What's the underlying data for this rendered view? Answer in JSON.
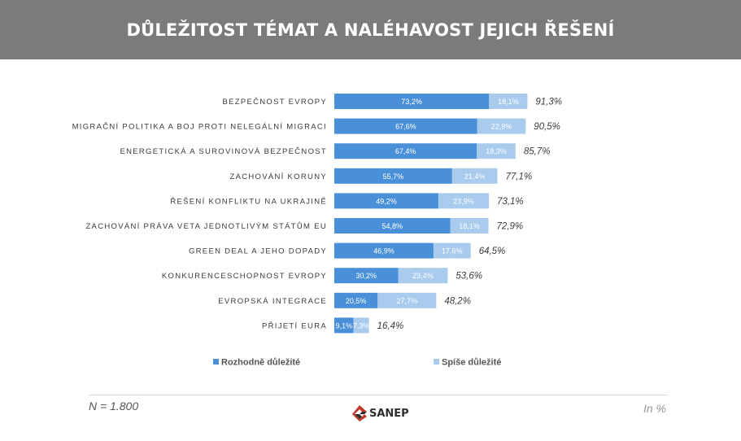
{
  "header": {
    "title": "DŮLEŽITOST TÉMAT A NALÉHAVOST JEJICH ŘEŠENÍ"
  },
  "footer": {
    "n_label": "N = 1.800",
    "unit_label": "In %",
    "logo_text": "SANEP"
  },
  "colors": {
    "header_bg": "#7b7b7b",
    "series_1": "#4a90d9",
    "series_2": "#a9cbee"
  },
  "chart_data": {
    "type": "bar",
    "orientation": "horizontal",
    "stacked": true,
    "categories": [
      "BEZPEČNOST EVROPY",
      "MIGRAČNÍ POLITIKA A BOJ PROTI NELEGÁLNÍ MIGRACI",
      "ENERGETICKÁ A SUROVINOVÁ BEZPEČNOST",
      "ZACHOVÁNÍ KORUNY",
      "ŘEŠENÍ KONFLIKTU NA UKRAJINĚ",
      "ZACHOVÁNÍ PRÁVA VETA JEDNOTLIVÝM STÁTŮM EU",
      "GREEN DEAL A JEHO DOPADY",
      "KONKURENCESCHOPNOST EVROPY",
      "EVROPSKÁ INTEGRACE",
      "PŘIJETÍ EURA"
    ],
    "series": [
      {
        "name": "Rozhodně důležité",
        "color": "#4a90d9",
        "values": [
          73.2,
          67.6,
          67.4,
          55.7,
          49.2,
          54.8,
          46.9,
          30.2,
          20.5,
          9.1
        ],
        "labels": [
          "73,2%",
          "67,6%",
          "67,4%",
          "55,7%",
          "49,2%",
          "54,8%",
          "46,9%",
          "30,2%",
          "20,5%",
          "9,1%"
        ]
      },
      {
        "name": "Spíše důležité",
        "color": "#a9cbee",
        "values": [
          18.1,
          22.9,
          18.3,
          21.4,
          23.9,
          18.1,
          17.6,
          23.4,
          27.7,
          7.3
        ],
        "labels": [
          "18,1%",
          "22,9%",
          "18,3%",
          "21,4%",
          "23,9%",
          "18,1%",
          "17,6%",
          "23,4%",
          "27,7%",
          "7,3%"
        ]
      }
    ],
    "totals": [
      91.3,
      90.5,
      85.7,
      77.1,
      73.1,
      72.9,
      64.5,
      53.6,
      48.2,
      16.4
    ],
    "total_labels": [
      "91,3%",
      "90,5%",
      "85,7%",
      "77,1%",
      "73,1%",
      "72,9%",
      "64,5%",
      "53,6%",
      "48,2%",
      "16,4%"
    ],
    "xlim": [
      0,
      100
    ],
    "legend": "bottom",
    "grid": false
  }
}
